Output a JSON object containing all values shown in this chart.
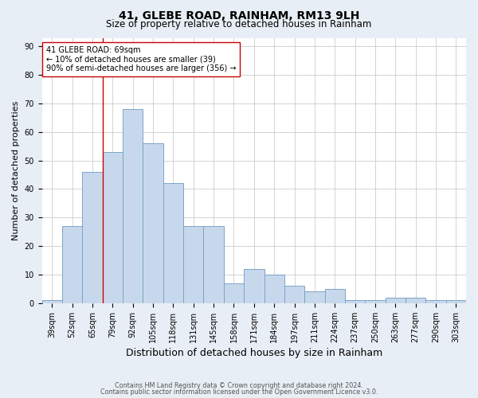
{
  "title": "41, GLEBE ROAD, RAINHAM, RM13 9LH",
  "subtitle": "Size of property relative to detached houses in Rainham",
  "xlabel": "Distribution of detached houses by size in Rainham",
  "ylabel": "Number of detached properties",
  "footnote1": "Contains HM Land Registry data © Crown copyright and database right 2024.",
  "footnote2": "Contains public sector information licensed under the Open Government Licence v3.0.",
  "categories": [
    "39sqm",
    "52sqm",
    "65sqm",
    "79sqm",
    "92sqm",
    "105sqm",
    "118sqm",
    "131sqm",
    "145sqm",
    "158sqm",
    "171sqm",
    "184sqm",
    "197sqm",
    "211sqm",
    "224sqm",
    "237sqm",
    "250sqm",
    "263sqm",
    "277sqm",
    "290sqm",
    "303sqm"
  ],
  "values": [
    1,
    27,
    46,
    53,
    68,
    56,
    42,
    27,
    27,
    7,
    12,
    10,
    6,
    4,
    5,
    1,
    1,
    2,
    2,
    1,
    1
  ],
  "bar_color": "#c8d8ec",
  "bar_edge_color": "#7ba3c8",
  "vline_x": 2.5,
  "vline_color": "#cc0000",
  "annotation_text": "41 GLEBE ROAD: 69sqm\n← 10% of detached houses are smaller (39)\n90% of semi-detached houses are larger (356) →",
  "annotation_box_color": "#ffffff",
  "annotation_box_edge": "#cc0000",
  "ylim": [
    0,
    93
  ],
  "yticks": [
    0,
    10,
    20,
    30,
    40,
    50,
    60,
    70,
    80,
    90
  ],
  "background_color": "#e8eef5",
  "plot_bg_color": "#ffffff",
  "grid_color": "#cccccc",
  "title_fontsize": 10,
  "subtitle_fontsize": 8.5,
  "xlabel_fontsize": 9,
  "ylabel_fontsize": 8,
  "tick_fontsize": 7,
  "footnote_fontsize": 5.8
}
